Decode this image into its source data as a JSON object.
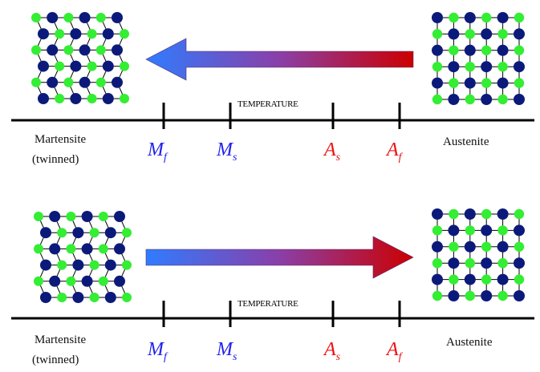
{
  "colors": {
    "atom_dark": "#0b1a7a",
    "atom_light": "#33ee33",
    "arrow_blue": "#2f7cff",
    "arrow_red": "#cc0000",
    "cold_label": "#2222ee",
    "hot_label": "#ee1111",
    "axis": "#000000"
  },
  "panels": [
    {
      "direction": "cooling",
      "axis_title": "TEMPERATURE",
      "left_phase": {
        "line1": "Martensite",
        "line2": "(twinned)"
      },
      "right_phase": {
        "line1": "Austenite"
      },
      "temps": [
        {
          "main": "M",
          "sub": "f",
          "color": "cold"
        },
        {
          "main": "M",
          "sub": "s",
          "color": "cold"
        },
        {
          "main": "A",
          "sub": "s",
          "color": "hot"
        },
        {
          "main": "A",
          "sub": "f",
          "color": "hot"
        }
      ]
    },
    {
      "direction": "heating",
      "axis_title": "TEMPERATURE",
      "left_phase": {
        "line1": "Martensite",
        "line2": "(twinned)"
      },
      "right_phase": {
        "line1": "Austenite"
      },
      "temps": [
        {
          "main": "M",
          "sub": "f",
          "color": "cold"
        },
        {
          "main": "M",
          "sub": "s",
          "color": "cold"
        },
        {
          "main": "A",
          "sub": "s",
          "color": "hot"
        },
        {
          "main": "A",
          "sub": "f",
          "color": "hot"
        }
      ]
    }
  ]
}
